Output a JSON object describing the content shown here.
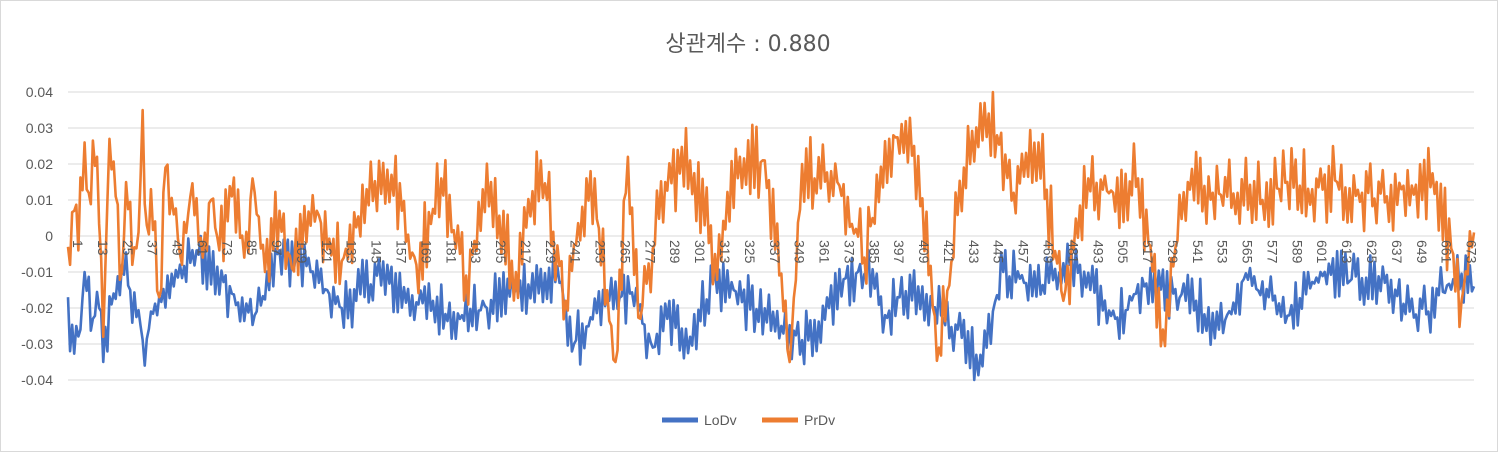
{
  "chart_data": {
    "type": "line",
    "title": "상관계수 : 0.880",
    "xlabel": "",
    "ylabel": "",
    "ylim": [
      -0.04,
      0.04
    ],
    "yticks": [
      "0.04",
      "0.03",
      "0.02",
      "0.01",
      "0",
      "-0.01",
      "-0.02",
      "-0.03",
      "-0.04"
    ],
    "ytick_values": [
      0.04,
      0.03,
      0.02,
      0.01,
      0,
      -0.01,
      -0.02,
      -0.03,
      -0.04
    ],
    "x_count": 679,
    "xticks": [
      1,
      13,
      25,
      37,
      49,
      61,
      73,
      85,
      97,
      109,
      121,
      133,
      145,
      157,
      169,
      181,
      193,
      205,
      217,
      229,
      241,
      253,
      265,
      277,
      289,
      301,
      313,
      325,
      337,
      349,
      361,
      373,
      385,
      397,
      409,
      421,
      433,
      445,
      457,
      469,
      481,
      493,
      505,
      517,
      529,
      541,
      553,
      565,
      577,
      589,
      601,
      613,
      625,
      637,
      649,
      661,
      673
    ],
    "grid": true,
    "legend_position": "bottom",
    "series_colors": {
      "LoDv": "#4472c4",
      "PrDv": "#ed7d31"
    },
    "series": [
      {
        "name": "LoDv",
        "color": "#4472c4",
        "anchors": [
          [
            1,
            -0.017
          ],
          [
            2,
            -0.032
          ],
          [
            5,
            -0.025
          ],
          [
            7,
            -0.026
          ],
          [
            9,
            -0.01
          ],
          [
            13,
            -0.023
          ],
          [
            16,
            -0.02
          ],
          [
            18,
            -0.035
          ],
          [
            22,
            -0.019
          ],
          [
            27,
            -0.008
          ],
          [
            31,
            -0.015
          ],
          [
            36,
            -0.025
          ],
          [
            38,
            -0.036
          ],
          [
            41,
            -0.021
          ],
          [
            44,
            -0.022
          ],
          [
            49,
            -0.011
          ],
          [
            52,
            -0.014
          ],
          [
            63,
            -0.004
          ],
          [
            80,
            -0.016
          ],
          [
            91,
            -0.022
          ],
          [
            103,
            -0.004
          ],
          [
            118,
            -0.01
          ],
          [
            133,
            -0.02
          ],
          [
            150,
            -0.011
          ],
          [
            170,
            -0.019
          ],
          [
            191,
            -0.022
          ],
          [
            203,
            -0.02
          ],
          [
            217,
            -0.014
          ],
          [
            238,
            -0.013
          ],
          [
            245,
            -0.03
          ],
          [
            262,
            -0.018
          ],
          [
            272,
            -0.016
          ],
          [
            283,
            -0.031
          ],
          [
            290,
            -0.023
          ],
          [
            301,
            -0.028
          ],
          [
            312,
            -0.013
          ],
          [
            322,
            -0.015
          ],
          [
            338,
            -0.024
          ],
          [
            345,
            -0.025
          ],
          [
            358,
            -0.029
          ],
          [
            362,
            -0.032
          ],
          [
            368,
            -0.02
          ],
          [
            375,
            -0.012
          ],
          [
            386,
            -0.01
          ],
          [
            395,
            -0.022
          ],
          [
            401,
            -0.017
          ],
          [
            411,
            -0.014
          ],
          [
            422,
            -0.022
          ],
          [
            430,
            -0.026
          ],
          [
            439,
            -0.033
          ],
          [
            441,
            -0.033
          ],
          [
            452,
            -0.01
          ],
          [
            462,
            -0.013
          ],
          [
            474,
            -0.013
          ],
          [
            484,
            -0.008
          ],
          [
            494,
            -0.015
          ],
          [
            506,
            -0.023
          ],
          [
            520,
            -0.014
          ],
          [
            534,
            -0.016
          ],
          [
            545,
            -0.018
          ],
          [
            556,
            -0.026
          ],
          [
            568,
            -0.012
          ],
          [
            580,
            -0.017
          ],
          [
            590,
            -0.022
          ],
          [
            605,
            -0.01
          ],
          [
            620,
            -0.012
          ],
          [
            636,
            -0.013
          ],
          [
            648,
            -0.021
          ],
          [
            657,
            -0.021
          ],
          [
            669,
            -0.012
          ],
          [
            679,
            -0.014
          ]
        ]
      },
      {
        "name": "PrDv",
        "color": "#ed7d31",
        "anchors": [
          [
            1,
            -0.003
          ],
          [
            4,
            0.007
          ],
          [
            6,
            -0.004
          ],
          [
            9,
            0.026
          ],
          [
            11,
            0.012
          ],
          [
            15,
            0.022
          ],
          [
            18,
            -0.028
          ],
          [
            21,
            0.027
          ],
          [
            24,
            0.011
          ],
          [
            27,
            -0.01
          ],
          [
            29,
            0.015
          ],
          [
            32,
            -0.008
          ],
          [
            35,
            0.001
          ],
          [
            37,
            0.035
          ],
          [
            39,
            0.003
          ],
          [
            41,
            0.013
          ],
          [
            45,
            -0.017
          ],
          [
            48,
            0.019
          ],
          [
            52,
            0.006
          ],
          [
            56,
            -0.008
          ],
          [
            60,
            0.011
          ],
          [
            66,
            -0.006
          ],
          [
            70,
            0.01
          ],
          [
            74,
            -0.004
          ],
          [
            80,
            0.011
          ],
          [
            86,
            -0.006
          ],
          [
            90,
            0.016
          ],
          [
            96,
            -0.01
          ],
          [
            103,
            0.007
          ],
          [
            109,
            -0.009
          ],
          [
            121,
            0.007
          ],
          [
            133,
            -0.007
          ],
          [
            145,
            0.013
          ],
          [
            157,
            0.017
          ],
          [
            169,
            -0.008
          ],
          [
            181,
            0.016
          ],
          [
            193,
            -0.011
          ],
          [
            205,
            0.015
          ],
          [
            217,
            -0.01
          ],
          [
            229,
            0.021
          ],
          [
            241,
            -0.018
          ],
          [
            253,
            0.018
          ],
          [
            265,
            -0.035
          ],
          [
            271,
            0.022
          ],
          [
            277,
            -0.023
          ],
          [
            289,
            0.015
          ],
          [
            301,
            0.021
          ],
          [
            313,
            -0.005
          ],
          [
            325,
            0.022
          ],
          [
            337,
            0.021
          ],
          [
            349,
            -0.035
          ],
          [
            355,
            0.02
          ],
          [
            361,
            0.016
          ],
          [
            373,
            0.014
          ],
          [
            385,
            -0.006
          ],
          [
            397,
            0.027
          ],
          [
            409,
            0.025
          ],
          [
            421,
            -0.031
          ],
          [
            433,
            0.019
          ],
          [
            445,
            0.034
          ],
          [
            457,
            0.012
          ],
          [
            469,
            0.026
          ],
          [
            481,
            -0.018
          ],
          [
            493,
            0.016
          ],
          [
            505,
            0.012
          ],
          [
            517,
            0.016
          ],
          [
            529,
            -0.026
          ],
          [
            541,
            0.015
          ],
          [
            553,
            0.012
          ],
          [
            565,
            0.012
          ],
          [
            577,
            0.01
          ],
          [
            589,
            0.015
          ],
          [
            601,
            0.013
          ],
          [
            613,
            0.015
          ],
          [
            625,
            0.012
          ],
          [
            637,
            0.011
          ],
          [
            649,
            0.014
          ],
          [
            661,
            0.015
          ],
          [
            673,
            -0.018
          ],
          [
            679,
            0.001
          ]
        ]
      }
    ]
  }
}
